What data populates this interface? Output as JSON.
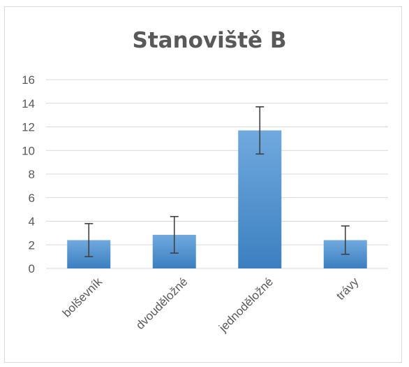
{
  "chart_data": {
    "type": "bar",
    "title": "Stanoviště B",
    "xlabel": "",
    "ylabel": "",
    "categories": [
      "bolševník",
      "dvouděložné",
      "jednoděložné",
      "trávy"
    ],
    "values": [
      2.4,
      2.85,
      11.7,
      2.4
    ],
    "error_low": [
      1.0,
      1.3,
      9.7,
      1.2
    ],
    "error_high": [
      3.8,
      4.4,
      13.7,
      3.6
    ],
    "ylim": [
      0,
      16
    ],
    "yticks": [
      "0",
      "2",
      "4",
      "6",
      "8",
      "10",
      "12",
      "14",
      "16"
    ],
    "grid": true,
    "legend": "none",
    "colors": {
      "bar_top": "#6fa8dc",
      "bar_bottom": "#3a7ebf",
      "grid": "#d9d9d9",
      "error": "#404040",
      "text": "#595959"
    }
  }
}
